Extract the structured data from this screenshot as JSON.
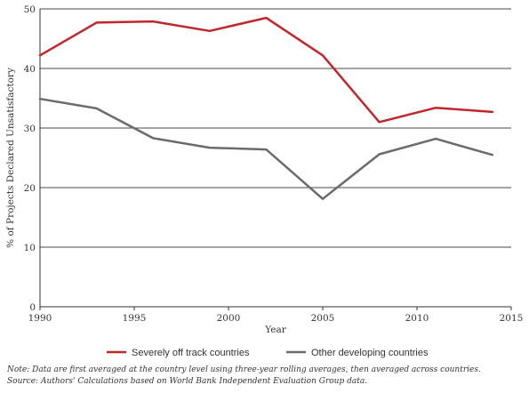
{
  "chart_data": {
    "type": "line",
    "xlabel": "Year",
    "ylabel": "% of Projects Declared Unsatisfactory",
    "xlim": [
      1990,
      2015
    ],
    "ylim": [
      0,
      50
    ],
    "x_ticks": [
      "1990",
      "1995",
      "2000",
      "2005",
      "2010",
      "2015"
    ],
    "y_ticks": [
      "0",
      "10",
      "20",
      "30",
      "40",
      "50"
    ],
    "grid": "horizontal",
    "legend_position": "bottom",
    "series": [
      {
        "name": "Severely off track countries",
        "color": "#c0272d",
        "x": [
          1990,
          1993,
          1996,
          1999,
          2002,
          2005,
          2008,
          2011,
          2014
        ],
        "y": [
          42.2,
          47.7,
          47.9,
          46.3,
          48.5,
          42.2,
          31.0,
          33.4,
          32.7
        ]
      },
      {
        "name": "Other developing countries",
        "color": "#6b6b6b",
        "x": [
          1990,
          1993,
          1996,
          1999,
          2002,
          2005,
          2008,
          2011,
          2014
        ],
        "y": [
          34.9,
          33.3,
          28.3,
          26.7,
          26.4,
          18.1,
          25.6,
          28.2,
          25.5
        ]
      }
    ]
  },
  "notes": {
    "note": "Note: Data are first averaged at the country level using three-year rolling averages, then averaged across countries.",
    "source": "Source: Authors' Calculations based on World Bank Independent Evaluation Group data."
  }
}
